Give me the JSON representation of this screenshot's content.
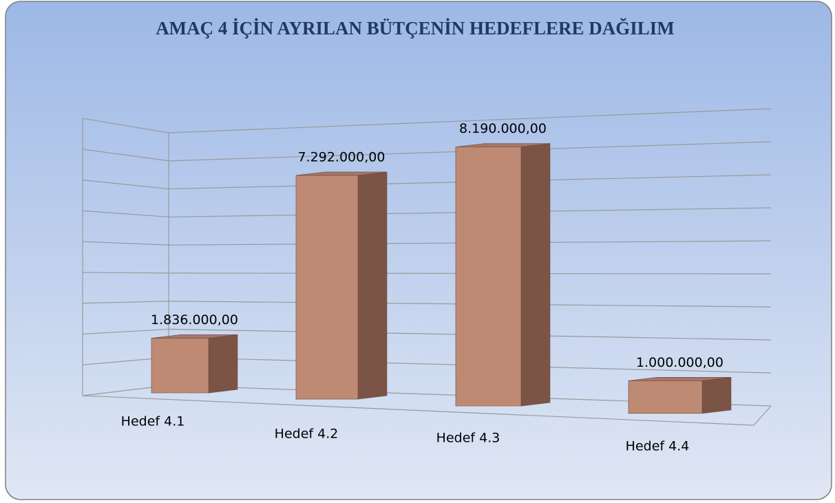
{
  "chart_data": {
    "type": "bar3d",
    "title": "AMAÇ 4 İÇİN AYRILAN BÜTÇENİN  HEDEFLERE DAĞILIM",
    "categories": [
      "Hedef 4.1",
      "Hedef 4.2",
      "Hedef 4.3",
      "Hedef 4.4"
    ],
    "values": [
      1836000,
      7292000,
      8190000,
      1000000
    ],
    "value_labels": [
      "1.836.000,00",
      "7.292.000,00",
      "8.190.000,00",
      "1.000.000,00"
    ],
    "color": "#bf8a73",
    "ylim": [
      0,
      9000000
    ],
    "yticks": [
      0,
      1000000,
      2000000,
      3000000,
      4000000,
      5000000,
      6000000,
      7000000,
      8000000,
      9000000
    ],
    "grid": true
  }
}
